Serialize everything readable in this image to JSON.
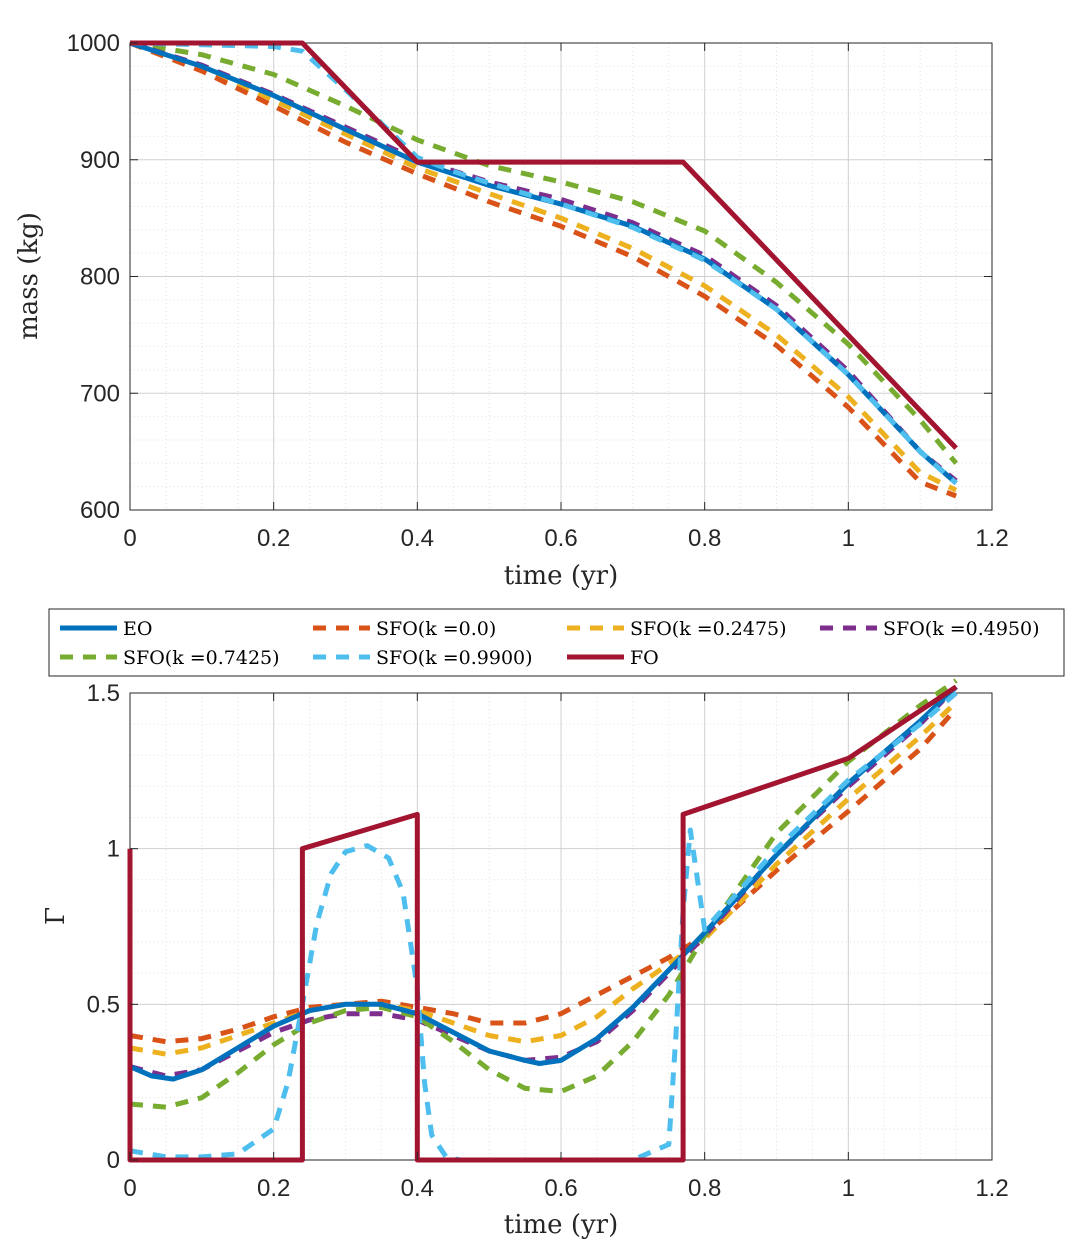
{
  "legend": {
    "entries": [
      {
        "key": "EO",
        "label": "EO"
      },
      {
        "key": "SFO0",
        "label": "SFO(k =0.0)"
      },
      {
        "key": "SFO1",
        "label": "SFO(k =0.2475)"
      },
      {
        "key": "SFO2",
        "label": "SFO(k =0.4950)"
      },
      {
        "key": "SFO3",
        "label": "SFO(k =0.7425)"
      },
      {
        "key": "SFO4",
        "label": "SFO(k =0.9900)"
      },
      {
        "key": "FO",
        "label": "FO"
      }
    ]
  },
  "series_styles": {
    "EO": {
      "color": "#0072BD",
      "dash": "solid"
    },
    "SFO0": {
      "color": "#D95319",
      "dash": "dashed"
    },
    "SFO1": {
      "color": "#EDB120",
      "dash": "dashed"
    },
    "SFO2": {
      "color": "#7E2F8E",
      "dash": "dashed"
    },
    "SFO3": {
      "color": "#77AC30",
      "dash": "dashed"
    },
    "SFO4": {
      "color": "#4DBEEE",
      "dash": "dashed"
    },
    "FO": {
      "color": "#A2142F",
      "dash": "solid"
    }
  },
  "chart_data": [
    {
      "type": "line",
      "id": "mass",
      "title": "",
      "xlabel": "time (yr)",
      "ylabel": "mass (kg)",
      "xlim": [
        0,
        1.2
      ],
      "ylim": [
        600,
        1000
      ],
      "xticks": [
        0,
        0.2,
        0.4,
        0.6,
        0.8,
        1,
        1.2
      ],
      "xtick_labels": [
        "0",
        "0.2",
        "0.4",
        "0.6",
        "0.8",
        "1",
        "1.2"
      ],
      "yticks": [
        600,
        700,
        800,
        900,
        1000
      ],
      "ytick_labels": [
        "600",
        "700",
        "800",
        "900",
        "1000"
      ],
      "grid": true,
      "series": [
        {
          "key": "SFO3",
          "x": [
            0,
            0.1,
            0.2,
            0.3,
            0.4,
            0.5,
            0.6,
            0.7,
            0.8,
            0.9,
            1.0,
            1.1,
            1.15
          ],
          "y": [
            1000,
            990,
            973,
            946,
            917,
            895,
            881,
            864,
            839,
            795,
            742,
            677,
            640
          ]
        },
        {
          "key": "SFO1",
          "x": [
            0,
            0.1,
            0.2,
            0.3,
            0.4,
            0.5,
            0.6,
            0.7,
            0.8,
            0.9,
            1.0,
            1.1,
            1.15
          ],
          "y": [
            1000,
            979,
            951,
            922,
            893,
            871,
            850,
            824,
            792,
            750,
            697,
            632,
            617
          ]
        },
        {
          "key": "SFO0",
          "x": [
            0,
            0.1,
            0.2,
            0.3,
            0.4,
            0.5,
            0.6,
            0.7,
            0.8,
            0.9,
            1.0,
            1.1,
            1.15
          ],
          "y": [
            1000,
            976,
            946,
            915,
            888,
            864,
            843,
            817,
            783,
            741,
            688,
            624,
            612
          ]
        },
        {
          "key": "SFO2",
          "x": [
            0,
            0.1,
            0.2,
            0.3,
            0.4,
            0.5,
            0.6,
            0.7,
            0.8,
            0.9,
            1.0,
            1.1,
            1.15
          ],
          "y": [
            1000,
            981,
            956,
            928,
            900,
            881,
            866,
            846,
            818,
            775,
            719,
            650,
            625
          ]
        },
        {
          "key": "EO",
          "x": [
            0,
            0.1,
            0.2,
            0.3,
            0.4,
            0.5,
            0.6,
            0.7,
            0.8,
            0.9,
            1.0,
            1.1,
            1.15
          ],
          "y": [
            1000,
            980,
            955,
            926,
            898,
            878,
            862,
            843,
            815,
            772,
            716,
            650,
            623
          ]
        },
        {
          "key": "SFO4",
          "x": [
            0,
            0.2,
            0.24,
            0.3,
            0.4,
            0.45,
            0.5,
            0.6,
            0.7,
            0.8,
            0.9,
            1.0,
            1.1,
            1.15
          ],
          "y": [
            1000,
            997,
            993,
            960,
            902,
            890,
            880,
            862,
            842,
            814,
            772,
            716,
            650,
            623
          ]
        },
        {
          "key": "FO",
          "x": [
            0,
            0.24,
            0.4,
            0.77,
            1.15
          ],
          "y": [
            1000,
            1000,
            898,
            898,
            653
          ]
        }
      ]
    },
    {
      "type": "line",
      "id": "gamma",
      "title": "",
      "xlabel": "time (yr)",
      "ylabel": "Γ",
      "xlim": [
        0,
        1.2
      ],
      "ylim": [
        0,
        1.5
      ],
      "xticks": [
        0,
        0.2,
        0.4,
        0.6,
        0.8,
        1,
        1.2
      ],
      "xtick_labels": [
        "0",
        "0.2",
        "0.4",
        "0.6",
        "0.8",
        "1",
        "1.2"
      ],
      "yticks": [
        0,
        0.5,
        1,
        1.5
      ],
      "ytick_labels": [
        "0",
        "0.5",
        "1",
        "1.5"
      ],
      "grid": true,
      "series": [
        {
          "key": "SFO0",
          "x": [
            0,
            0.05,
            0.1,
            0.15,
            0.2,
            0.25,
            0.3,
            0.35,
            0.4,
            0.45,
            0.5,
            0.55,
            0.6,
            0.65,
            0.7,
            0.75,
            0.8,
            0.9,
            1.0,
            1.1,
            1.15
          ],
          "y": [
            0.4,
            0.38,
            0.39,
            0.42,
            0.46,
            0.49,
            0.5,
            0.51,
            0.49,
            0.47,
            0.44,
            0.44,
            0.47,
            0.53,
            0.59,
            0.65,
            0.72,
            0.93,
            1.12,
            1.32,
            1.45
          ]
        },
        {
          "key": "SFO1",
          "x": [
            0,
            0.05,
            0.1,
            0.15,
            0.2,
            0.25,
            0.3,
            0.35,
            0.4,
            0.45,
            0.5,
            0.55,
            0.6,
            0.65,
            0.7,
            0.75,
            0.8,
            0.9,
            1.0,
            1.1,
            1.15
          ],
          "y": [
            0.36,
            0.34,
            0.36,
            0.4,
            0.44,
            0.48,
            0.5,
            0.5,
            0.48,
            0.44,
            0.4,
            0.38,
            0.4,
            0.46,
            0.55,
            0.63,
            0.71,
            0.95,
            1.16,
            1.36,
            1.47
          ]
        },
        {
          "key": "SFO2",
          "x": [
            0,
            0.05,
            0.1,
            0.15,
            0.2,
            0.25,
            0.3,
            0.35,
            0.4,
            0.45,
            0.5,
            0.55,
            0.6,
            0.65,
            0.7,
            0.75,
            0.8,
            0.9,
            1.0,
            1.1,
            1.15
          ],
          "y": [
            0.3,
            0.27,
            0.29,
            0.35,
            0.41,
            0.45,
            0.47,
            0.47,
            0.45,
            0.4,
            0.35,
            0.32,
            0.33,
            0.38,
            0.48,
            0.6,
            0.72,
            0.98,
            1.2,
            1.4,
            1.52
          ]
        },
        {
          "key": "SFO3",
          "x": [
            0,
            0.05,
            0.1,
            0.15,
            0.2,
            0.25,
            0.3,
            0.35,
            0.4,
            0.45,
            0.5,
            0.55,
            0.6,
            0.65,
            0.7,
            0.75,
            0.8,
            0.9,
            1.0,
            1.1,
            1.15
          ],
          "y": [
            0.18,
            0.17,
            0.2,
            0.28,
            0.37,
            0.44,
            0.48,
            0.49,
            0.46,
            0.38,
            0.29,
            0.23,
            0.22,
            0.27,
            0.38,
            0.53,
            0.72,
            1.05,
            1.28,
            1.46,
            1.54
          ]
        },
        {
          "key": "EO",
          "x": [
            0,
            0.03,
            0.06,
            0.1,
            0.15,
            0.2,
            0.25,
            0.3,
            0.35,
            0.4,
            0.45,
            0.5,
            0.55,
            0.57,
            0.6,
            0.65,
            0.7,
            0.75,
            0.8,
            0.9,
            1.0,
            1.1,
            1.15
          ],
          "y": [
            0.3,
            0.27,
            0.26,
            0.29,
            0.36,
            0.43,
            0.48,
            0.5,
            0.5,
            0.47,
            0.41,
            0.35,
            0.32,
            0.31,
            0.32,
            0.39,
            0.49,
            0.61,
            0.73,
            0.98,
            1.21,
            1.41,
            1.52
          ]
        },
        {
          "key": "SFO4",
          "x": [
            0,
            0.05,
            0.1,
            0.15,
            0.2,
            0.22,
            0.24,
            0.26,
            0.28,
            0.3,
            0.33,
            0.36,
            0.38,
            0.4,
            0.41,
            0.42,
            0.44,
            0.46,
            0.5,
            0.6,
            0.7,
            0.75,
            0.76,
            0.77,
            0.78,
            0.8,
            0.9,
            1.0,
            1.1,
            1.15
          ],
          "y": [
            0.03,
            0.01,
            0.01,
            0.02,
            0.1,
            0.25,
            0.5,
            0.76,
            0.92,
            0.99,
            1.01,
            0.97,
            0.86,
            0.55,
            0.25,
            0.08,
            0.01,
            0.0,
            0.0,
            0.0,
            0.0,
            0.05,
            0.4,
            0.8,
            1.06,
            0.74,
            1.0,
            1.22,
            1.4,
            1.5
          ]
        },
        {
          "key": "FO",
          "x": [
            0,
            0,
            0,
            0.24,
            0.24,
            0.4,
            0.4,
            0.77,
            0.77,
            1.0,
            1.15
          ],
          "y": [
            1.0,
            0.0,
            0.0,
            0.0,
            1.0,
            1.11,
            0.0,
            0.0,
            1.11,
            1.29,
            1.52
          ]
        }
      ]
    }
  ]
}
